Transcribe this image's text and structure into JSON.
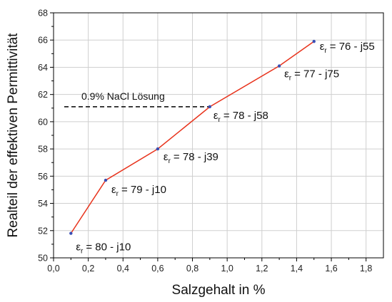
{
  "chart_data": {
    "type": "line",
    "xlabel": "Salzgehalt in %",
    "ylabel": "Realteil der effektiven Permittivität",
    "xlim": [
      0.0,
      1.9
    ],
    "ylim": [
      50,
      68
    ],
    "x_ticks": [
      "0,0",
      "0,2",
      "0,4",
      "0,6",
      "0,8",
      "1,0",
      "1,2",
      "1,4",
      "1,6",
      "1,8"
    ],
    "y_ticks": [
      "50",
      "52",
      "54",
      "56",
      "58",
      "60",
      "62",
      "64",
      "66",
      "68"
    ],
    "grid": true,
    "line_color": "#e8331c",
    "marker_color": "#3a4fb5",
    "reference_color": "#000000",
    "series": [
      {
        "x": [
          0.1,
          0.3,
          0.6,
          0.9,
          1.3,
          1.5
        ],
        "y": [
          51.8,
          55.7,
          58.0,
          61.1,
          64.1,
          65.9
        ]
      }
    ],
    "annotations": [
      {
        "x": 0.1,
        "y": 51.8,
        "sym": "ε",
        "sub": "r",
        "text": "= 80 - j10"
      },
      {
        "x": 0.3,
        "y": 55.7,
        "sym": "ε",
        "sub": "r",
        "text": "= 79 - j10"
      },
      {
        "x": 0.6,
        "y": 58.0,
        "sym": "ε",
        "sub": "r",
        "text": "= 78 - j39"
      },
      {
        "x": 0.9,
        "y": 61.1,
        "sym": "ε",
        "sub": "r",
        "text": "= 78 - j58"
      },
      {
        "x": 1.3,
        "y": 64.1,
        "sym": "ε",
        "sub": "r",
        "text": "= 77 - j75"
      },
      {
        "x": 1.5,
        "y": 65.9,
        "sym": "ε",
        "sub": "r",
        "text": "= 76 - j55"
      }
    ],
    "reference": {
      "label": "0.9% NaCl Lösung",
      "y": 61.1,
      "x_from": 0.0,
      "x_to": 0.9
    }
  }
}
